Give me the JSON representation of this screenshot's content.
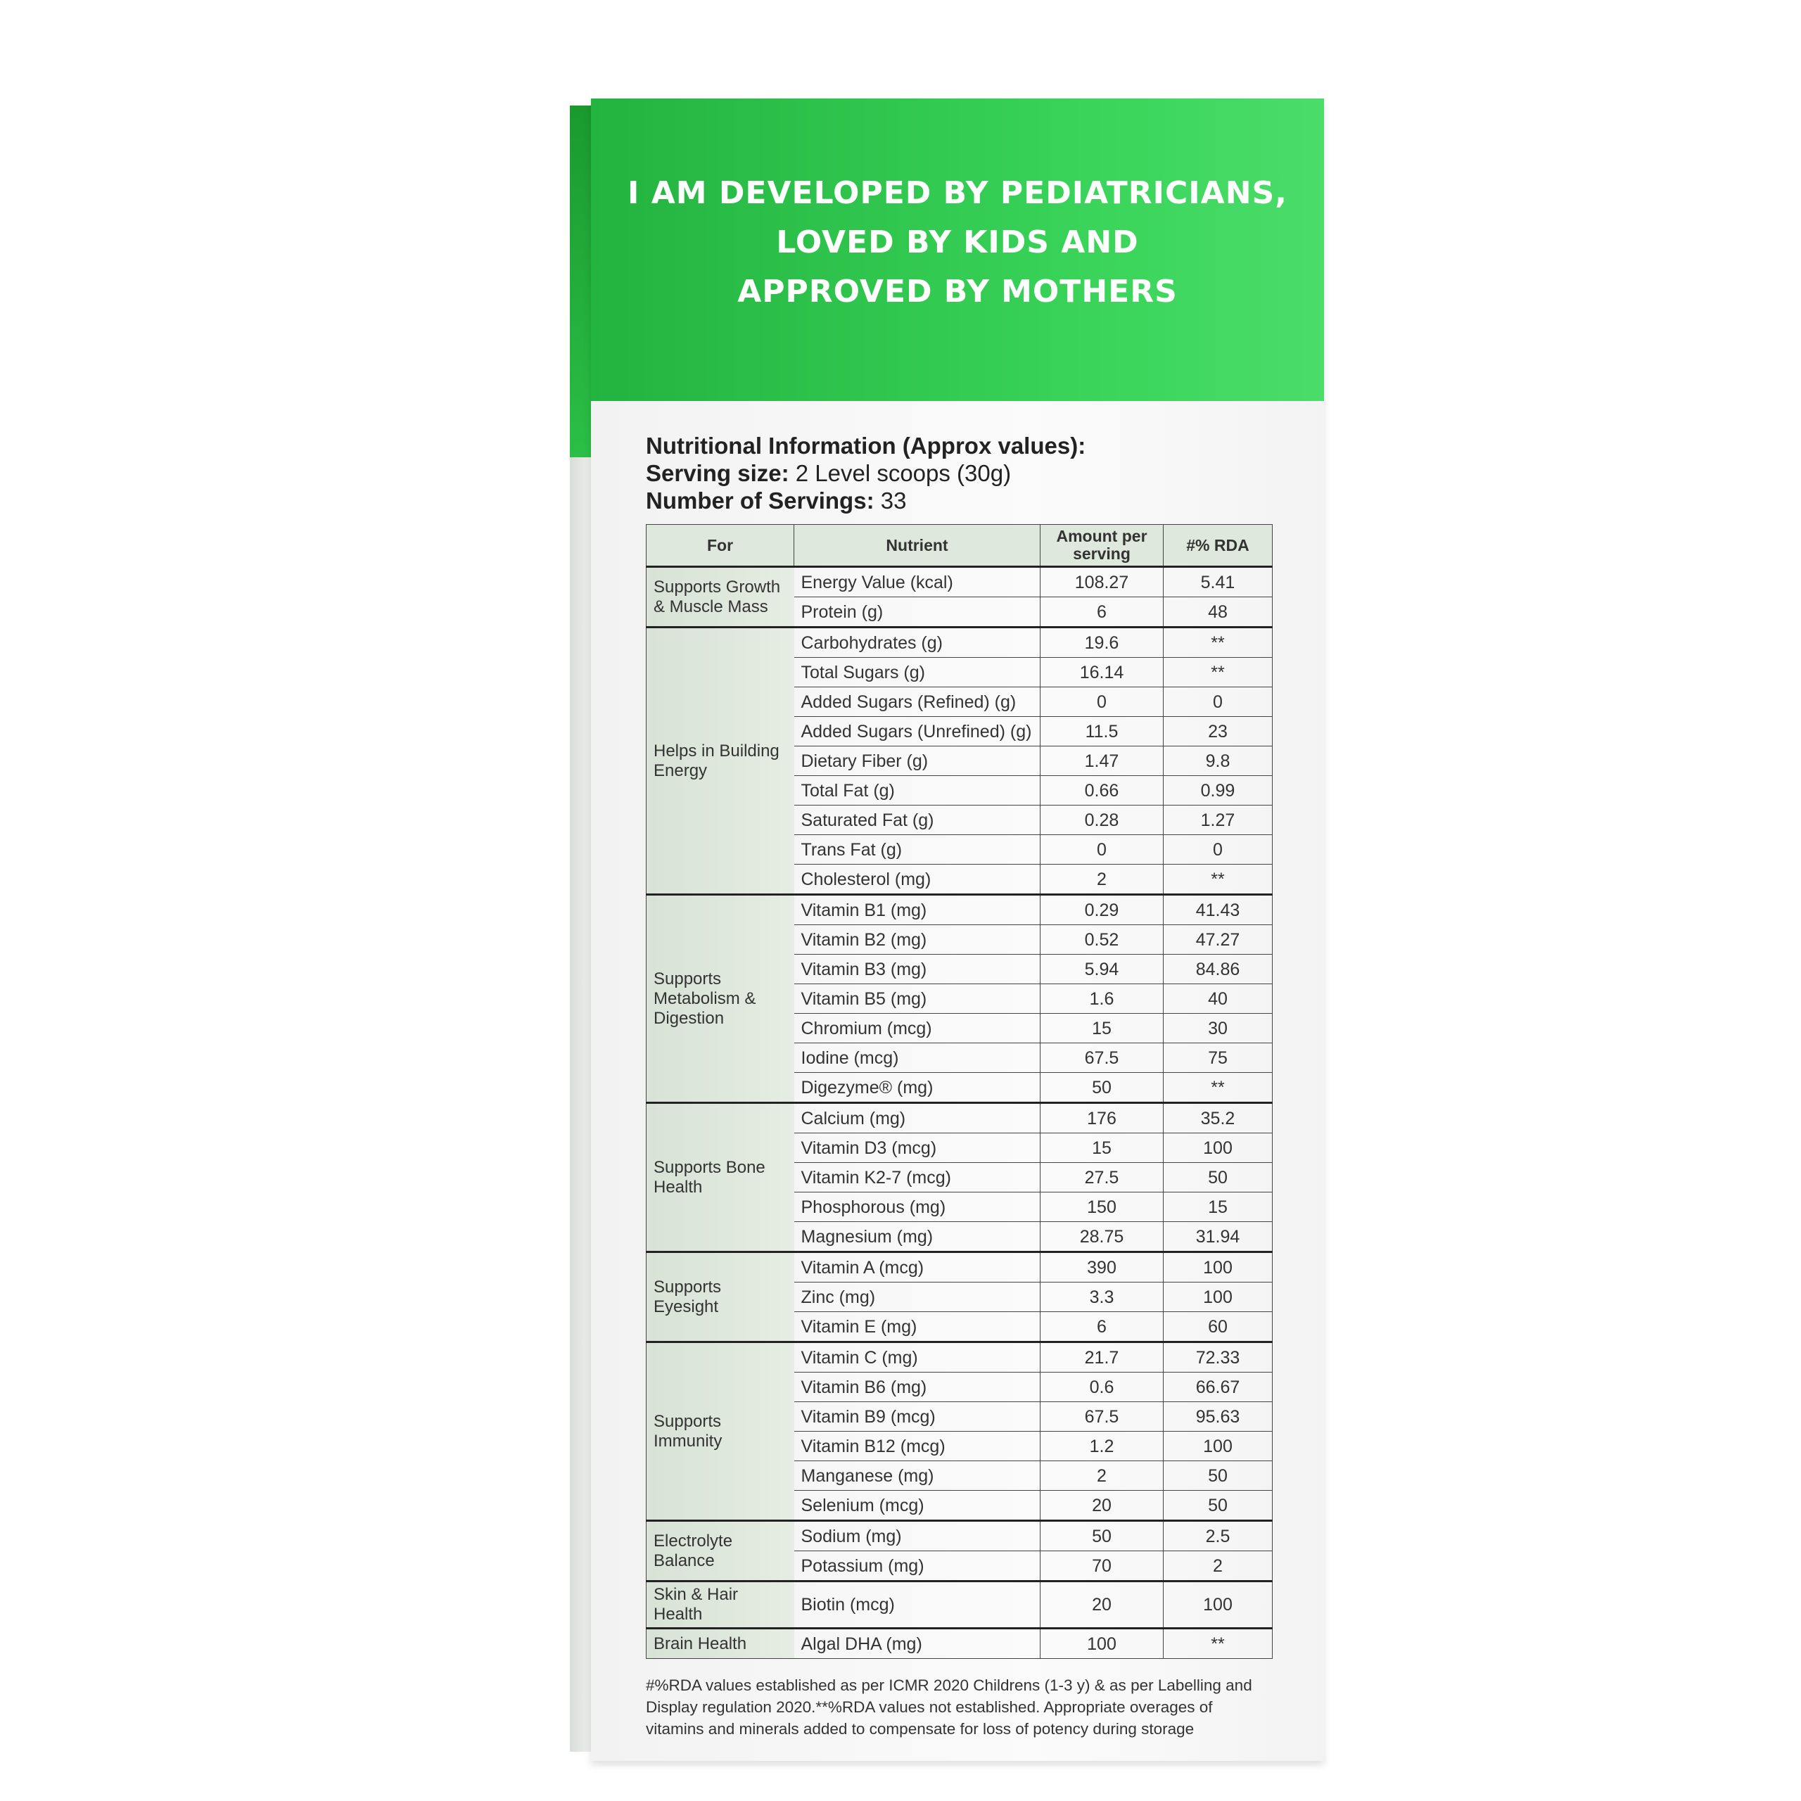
{
  "banner": {
    "lines": [
      "I AM DEVELOPED BY PEDIATRICIANS,",
      "LOVED BY KIDS AND",
      "APPROVED BY MOTHERS"
    ]
  },
  "info": {
    "title": "Nutritional Information (Approx values):",
    "serving_label": "Serving size:",
    "serving_value": "2 Level scoops (30g)",
    "servings_label": "Number of Servings:",
    "servings_value": "33"
  },
  "table": {
    "headers": [
      "For",
      "Nutrient",
      "Amount per serving",
      "#% RDA"
    ],
    "groups": [
      {
        "for": "Supports Growth & Muscle Mass",
        "rows": [
          [
            "Energy Value (kcal)",
            "108.27",
            "5.41"
          ],
          [
            "Protein (g)",
            "6",
            "48"
          ]
        ]
      },
      {
        "for": "Helps in Building Energy",
        "rows": [
          [
            "Carbohydrates (g)",
            "19.6",
            "**"
          ],
          [
            "Total Sugars (g)",
            "16.14",
            "**"
          ],
          [
            "Added Sugars (Refined) (g)",
            "0",
            "0"
          ],
          [
            "Added Sugars (Unrefined) (g)",
            "11.5",
            "23"
          ],
          [
            "Dietary Fiber (g)",
            "1.47",
            "9.8"
          ],
          [
            "Total Fat (g)",
            "0.66",
            "0.99"
          ],
          [
            "Saturated Fat (g)",
            "0.28",
            "1.27"
          ],
          [
            "Trans Fat (g)",
            "0",
            "0"
          ],
          [
            "Cholesterol (mg)",
            "2",
            "**"
          ]
        ]
      },
      {
        "for": "Supports Metabolism & Digestion",
        "rows": [
          [
            "Vitamin B1 (mg)",
            "0.29",
            "41.43"
          ],
          [
            "Vitamin B2 (mg)",
            "0.52",
            "47.27"
          ],
          [
            "Vitamin B3 (mg)",
            "5.94",
            "84.86"
          ],
          [
            "Vitamin B5 (mg)",
            "1.6",
            "40"
          ],
          [
            "Chromium (mcg)",
            "15",
            "30"
          ],
          [
            "Iodine (mcg)",
            "67.5",
            "75"
          ],
          [
            "Digezyme® (mg)",
            "50",
            "**"
          ]
        ]
      },
      {
        "for": "Supports Bone Health",
        "rows": [
          [
            "Calcium (mg)",
            "176",
            "35.2"
          ],
          [
            "Vitamin D3 (mcg)",
            "15",
            "100"
          ],
          [
            "Vitamin K2-7 (mcg)",
            "27.5",
            "50"
          ],
          [
            "Phosphorous (mg)",
            "150",
            "15"
          ],
          [
            "Magnesium (mg)",
            "28.75",
            "31.94"
          ]
        ]
      },
      {
        "for": "Supports Eyesight",
        "rows": [
          [
            "Vitamin A (mcg)",
            "390",
            "100"
          ],
          [
            "Zinc (mg)",
            "3.3",
            "100"
          ],
          [
            "Vitamin E (mg)",
            "6",
            "60"
          ]
        ]
      },
      {
        "for": "Supports Immunity",
        "rows": [
          [
            "Vitamin C (mg)",
            "21.7",
            "72.33"
          ],
          [
            "Vitamin B6 (mg)",
            "0.6",
            "66.67"
          ],
          [
            "Vitamin B9 (mcg)",
            "67.5",
            "95.63"
          ],
          [
            "Vitamin B12 (mcg)",
            "1.2",
            "100"
          ],
          [
            "Manganese (mg)",
            "2",
            "50"
          ],
          [
            "Selenium (mcg)",
            "20",
            "50"
          ]
        ]
      },
      {
        "for": "Electrolyte Balance",
        "rows": [
          [
            "Sodium (mg)",
            "50",
            "2.5"
          ],
          [
            "Potassium (mg)",
            "70",
            "2"
          ]
        ]
      },
      {
        "for": "Skin & Hair Health",
        "rows": [
          [
            "Biotin (mcg)",
            "20",
            "100"
          ]
        ]
      },
      {
        "for": "Brain Health",
        "rows": [
          [
            "Algal DHA (mg)",
            "100",
            "**"
          ]
        ]
      }
    ]
  },
  "footnote": "#%RDA values established as per ICMR 2020 Childrens (1-3 y) & as per Labelling and Display regulation 2020.**%RDA values not established. Appropriate overages of vitamins and minerals added to compensate for loss of potency during storage",
  "colors": {
    "banner_green": "#2fc64d",
    "for_column": "#dae4d7"
  }
}
